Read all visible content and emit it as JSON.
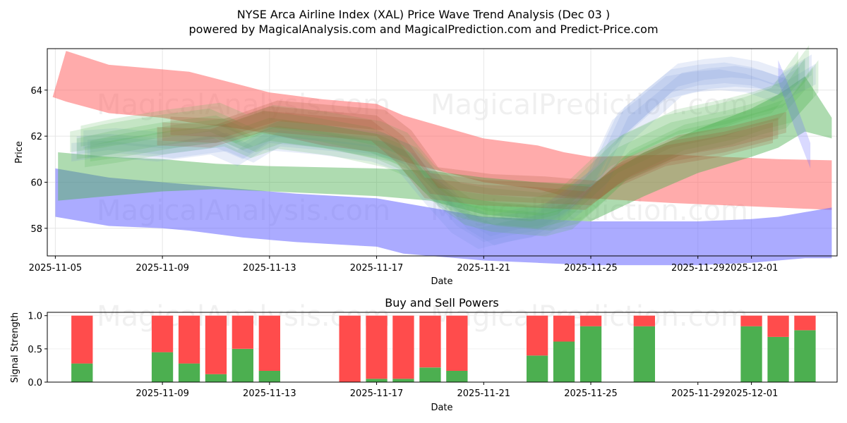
{
  "title_line1": "NYSE Arca Airline Index (XAL) Price Wave Trend Analysis (Dec 03 )",
  "title_line2": "powered by MagicalAnalysis.com and MagicalPrediction.com and Predict-Price.com",
  "watermarks": [
    "MagicalAnalysis.com",
    "MagicalPrediction.com"
  ],
  "colors": {
    "red_band": "#ff6666",
    "blue_band": "#6666ff",
    "green_band": "#4caf50",
    "lightblue_band": "#6f8fd8",
    "brown_band": "#a0522d",
    "buy": "#4caf50",
    "sell": "#ff4c4c"
  },
  "chart_data": [
    {
      "type": "area",
      "title": "",
      "xlabel": "Date",
      "ylabel": "Price",
      "ylim": [
        56.8,
        65.8
      ],
      "x_range_days": [
        -0.3,
        29.2
      ],
      "x_origin_date": "2025-11-05",
      "xtick_labels": [
        "2025-11-05",
        "2025-11-09",
        "2025-11-13",
        "2025-11-17",
        "2025-11-21",
        "2025-11-25",
        "2025-11-29",
        "2025-12-01"
      ],
      "xtick_days": [
        0,
        4,
        8,
        12,
        16,
        20,
        24,
        26
      ],
      "ytick_labels": [
        "58",
        "60",
        "62",
        "64"
      ],
      "ytick_values": [
        58,
        60,
        62,
        64
      ],
      "grid": true,
      "series": [
        {
          "name": "red wave band",
          "color": "#ff6666",
          "opacity": 0.55,
          "x": [
            -0.1,
            0.4,
            2,
            4,
            5,
            7,
            8,
            10,
            12,
            13,
            16,
            18,
            19,
            20,
            23,
            25,
            27,
            29
          ],
          "upper": [
            63.7,
            65.7,
            65.1,
            64.9,
            64.8,
            64.2,
            63.9,
            63.6,
            63.4,
            62.9,
            61.9,
            61.6,
            61.3,
            61.1,
            61.2,
            61.1,
            61.0,
            60.95
          ],
          "lower": [
            63.7,
            63.5,
            63.0,
            62.8,
            62.6,
            62.3,
            62.1,
            61.6,
            61.3,
            60.9,
            60.0,
            59.7,
            59.4,
            59.3,
            59.1,
            59.0,
            58.9,
            58.8
          ]
        },
        {
          "name": "blue wave band",
          "color": "#6666ff",
          "opacity": 0.55,
          "x": [
            0,
            2,
            4,
            5,
            7,
            9,
            12,
            13,
            16,
            18,
            20,
            22,
            24,
            26,
            27,
            28,
            29
          ],
          "upper": [
            60.6,
            60.2,
            60.0,
            59.9,
            59.7,
            59.5,
            59.3,
            59.1,
            58.5,
            58.4,
            58.3,
            58.3,
            58.3,
            58.4,
            58.5,
            58.7,
            58.9
          ],
          "lower": [
            58.5,
            58.1,
            58.0,
            57.9,
            57.6,
            57.4,
            57.2,
            56.9,
            56.6,
            56.5,
            56.4,
            56.4,
            56.4,
            56.5,
            56.6,
            56.7,
            56.7
          ]
        },
        {
          "name": "green wave band (lower)",
          "color": "#4caf50",
          "opacity": 0.45,
          "x": [
            0.1,
            2,
            4,
            6,
            8,
            12,
            14,
            16,
            18,
            20,
            22,
            24,
            26,
            27,
            28,
            29
          ],
          "upper": [
            61.3,
            61.1,
            61.0,
            60.8,
            60.7,
            60.6,
            60.5,
            60.2,
            60.0,
            59.9,
            61.3,
            62.3,
            63.2,
            63.8,
            64.6,
            62.8
          ],
          "lower": [
            59.2,
            59.4,
            59.6,
            59.7,
            59.6,
            59.4,
            59.2,
            58.6,
            58.4,
            58.3,
            59.4,
            60.4,
            61.1,
            61.5,
            62.2,
            61.9
          ]
        }
      ]
    },
    {
      "type": "bar",
      "title": "Buy and Sell Powers",
      "xlabel": "Date",
      "ylabel": "Signal Strength",
      "ylim": [
        0,
        1.05
      ],
      "x_range_days": [
        -0.3,
        29.2
      ],
      "x_origin_date": "2025-11-05",
      "xtick_labels": [
        "2025-11-09",
        "2025-11-13",
        "2025-11-17",
        "2025-11-21",
        "2025-11-25",
        "2025-11-29",
        "2025-12-01"
      ],
      "xtick_days": [
        4,
        8,
        12,
        16,
        20,
        24,
        26
      ],
      "ytick_labels": [
        "0.0",
        "0.5",
        "1.0"
      ],
      "ytick_values": [
        0,
        0.5,
        1.0
      ],
      "bar_days": [
        1,
        4,
        5,
        6,
        7,
        8,
        11,
        12,
        13,
        14,
        15,
        18,
        19,
        20,
        22,
        26,
        27,
        28
      ],
      "series": [
        {
          "name": "Buy",
          "color": "#4caf50",
          "values": [
            0.28,
            0.45,
            0.28,
            0.12,
            0.5,
            0.17,
            0.0,
            0.05,
            0.05,
            0.22,
            0.17,
            0.4,
            0.61,
            0.84,
            0.84,
            0.84,
            0.68,
            0.78
          ]
        },
        {
          "name": "Sell",
          "color": "#ff4c4c",
          "values": [
            0.72,
            0.55,
            0.72,
            0.88,
            0.5,
            0.83,
            1.0,
            0.95,
            0.95,
            0.78,
            0.83,
            0.6,
            0.39,
            0.16,
            0.16,
            0.16,
            0.32,
            0.22
          ]
        }
      ]
    }
  ]
}
